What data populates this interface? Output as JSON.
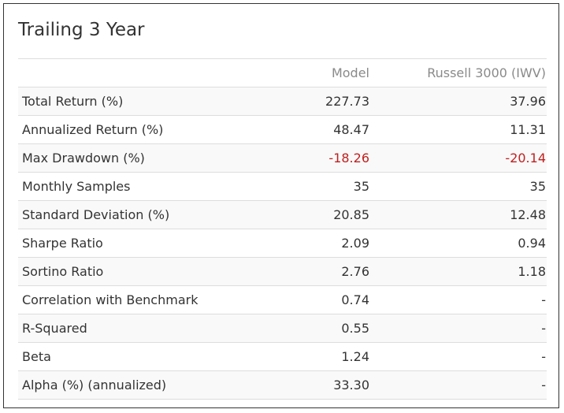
{
  "title": "Trailing 3 Year",
  "columns": {
    "label": "",
    "model": "Model",
    "benchmark": "Russell 3000 (IWV)"
  },
  "negative_color": "#c0201f",
  "rows": [
    {
      "label": "Total Return (%)",
      "model": "227.73",
      "benchmark": "37.96",
      "negative": false
    },
    {
      "label": "Annualized Return (%)",
      "model": "48.47",
      "benchmark": "11.31",
      "negative": false
    },
    {
      "label": "Max Drawdown (%)",
      "model": "-18.26",
      "benchmark": "-20.14",
      "negative": true
    },
    {
      "label": "Monthly Samples",
      "model": "35",
      "benchmark": "35",
      "negative": false
    },
    {
      "label": "Standard Deviation (%)",
      "model": "20.85",
      "benchmark": "12.48",
      "negative": false
    },
    {
      "label": "Sharpe Ratio",
      "model": "2.09",
      "benchmark": "0.94",
      "negative": false
    },
    {
      "label": "Sortino Ratio",
      "model": "2.76",
      "benchmark": "1.18",
      "negative": false
    },
    {
      "label": "Correlation with Benchmark",
      "model": "0.74",
      "benchmark": "-",
      "negative": false
    },
    {
      "label": "R-Squared",
      "model": "0.55",
      "benchmark": "-",
      "negative": false
    },
    {
      "label": "Beta",
      "model": "1.24",
      "benchmark": "-",
      "negative": false
    },
    {
      "label": "Alpha (%) (annualized)",
      "model": "33.30",
      "benchmark": "-",
      "negative": false
    }
  ]
}
